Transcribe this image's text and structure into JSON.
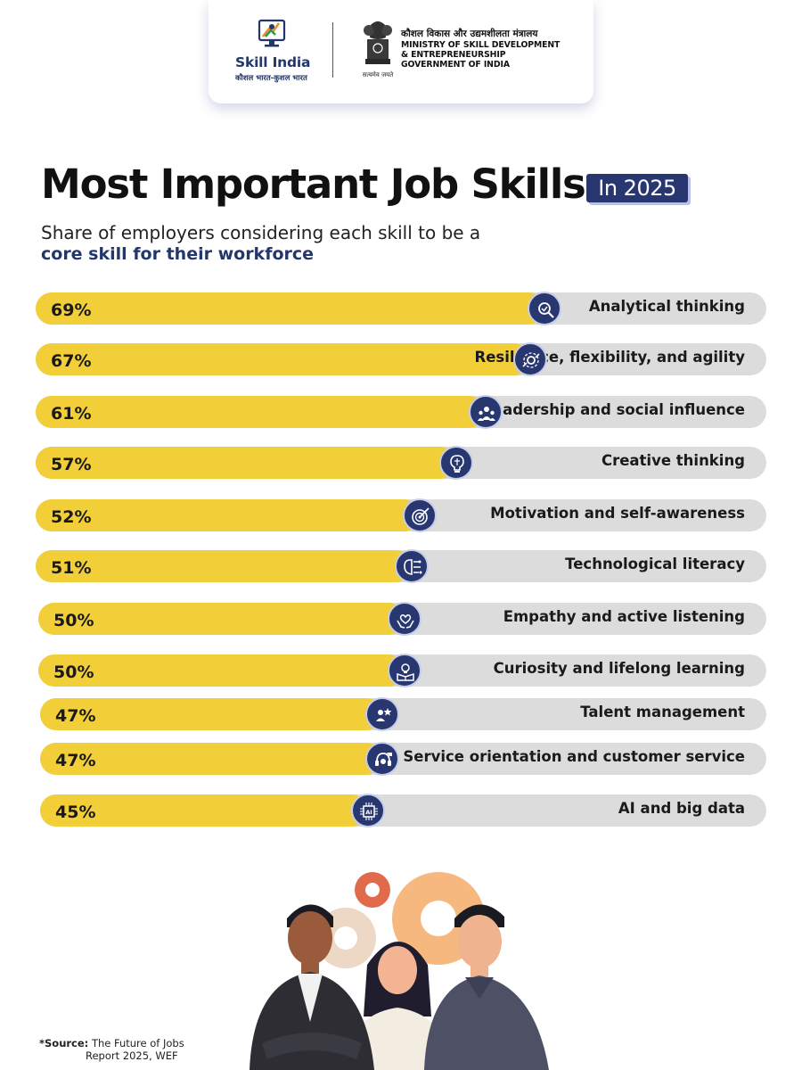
{
  "header": {
    "logo_name": "Skill India",
    "logo_tagline": "कौशल भारत-कुशल भारत",
    "emblem_motto": "सत्यमेव जयते",
    "ministry_hindi": "कौशल विकास और उद्यमशीलता मंत्रालय",
    "ministry_line1": "MINISTRY OF SKILL DEVELOPMENT",
    "ministry_line2": "& ENTREPRENEURSHIP",
    "ministry_line3": "GOVERNMENT OF INDIA"
  },
  "chart_data": {
    "type": "bar",
    "orientation": "horizontal",
    "title": "Most Important Job Skills",
    "title_badge": "In 2025",
    "subtitle_line1": "Share of employers considering each skill to be a",
    "subtitle_line2": "core skill for their workforce",
    "xlim": [
      0,
      100
    ],
    "unit": "%",
    "categories": [
      "Analytical thinking",
      "Resilience, flexibility, and agility",
      "Leadership and social influence",
      "Creative thinking",
      "Motivation and self-awareness",
      "Technological literacy",
      "Empathy and active listening",
      "Curiosity and lifelong learning",
      "Talent management",
      "Service orientation and customer service",
      "AI and big data"
    ],
    "values": [
      69,
      67,
      61,
      57,
      52,
      51,
      50,
      50,
      47,
      47,
      45
    ],
    "value_labels": [
      "69%",
      "67%",
      "61%",
      "57%",
      "52%",
      "51%",
      "50%",
      "50%",
      "47%",
      "47%",
      "45%"
    ],
    "icons": [
      "magnifier-brain-icon",
      "gear-arrows-icon",
      "team-leader-icon",
      "lightbulb-brain-icon",
      "target-arrow-icon",
      "circuit-brain-icon",
      "hands-heart-icon",
      "book-lightbulb-icon",
      "talent-star-icon",
      "customer-support-icon",
      "ai-chip-icon"
    ],
    "colors": {
      "fill": "#f2cf39",
      "track": "#dcdcdc",
      "icon_bg": "#283770"
    }
  },
  "source": {
    "prefix": "*Source:",
    "line1": "The Future of Jobs",
    "line2": "Report 2025, WEF"
  }
}
